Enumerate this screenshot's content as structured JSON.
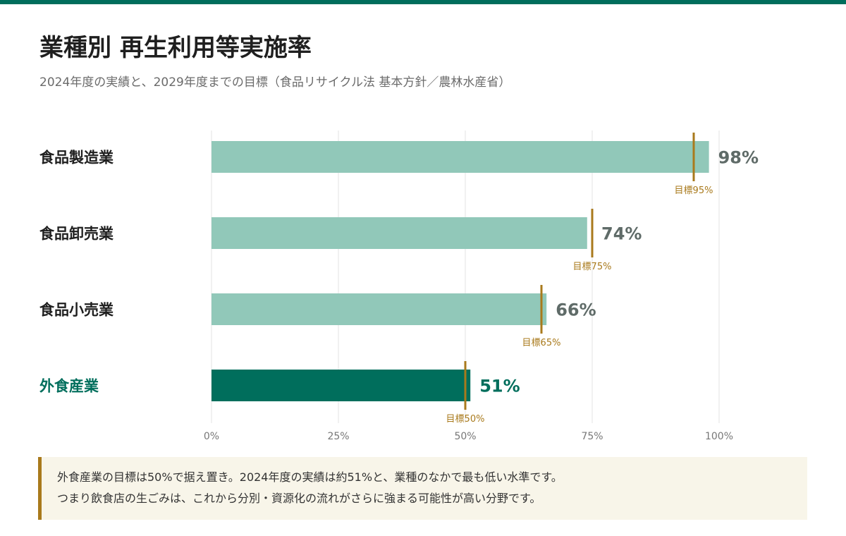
{
  "title": "業種別 再生利用等実施率",
  "subtitle": "2024年度の実績と、2029年度までの目標（食品リサイクル法 基本方針／農林水産省）",
  "colors": {
    "top_bar": "#006e5c",
    "bar_light": "#91c8b9",
    "bar_highlight": "#006e5c",
    "target": "#a97a1c",
    "value_text": "#5f6b68",
    "label_text": "#1f1f1f"
  },
  "chart_data": {
    "type": "bar",
    "orientation": "horizontal",
    "categories": [
      "食品製造業",
      "食品卸売業",
      "食品小売業",
      "外食産業"
    ],
    "values": [
      98,
      74,
      66,
      51
    ],
    "value_labels": [
      "98%",
      "74%",
      "66%",
      "51%"
    ],
    "targets": [
      95,
      75,
      65,
      50
    ],
    "target_labels": [
      "目標95%",
      "目標75%",
      "目標65%",
      "目標50%"
    ],
    "highlight": [
      false,
      false,
      false,
      true
    ],
    "xlim": [
      0,
      100
    ],
    "xticks": [
      0,
      25,
      50,
      75,
      100
    ],
    "xtick_labels": [
      "0%",
      "25%",
      "50%",
      "75%",
      "100%"
    ],
    "grid": true
  },
  "note": {
    "lines": [
      "外食産業の目標は50%で据え置き。2024年度の実績は約51%と、業種のなかで最も低い水準です。",
      "つまり飲食店の生ごみは、これから分別・資源化の流れがさらに強まる可能性が高い分野です。"
    ]
  }
}
